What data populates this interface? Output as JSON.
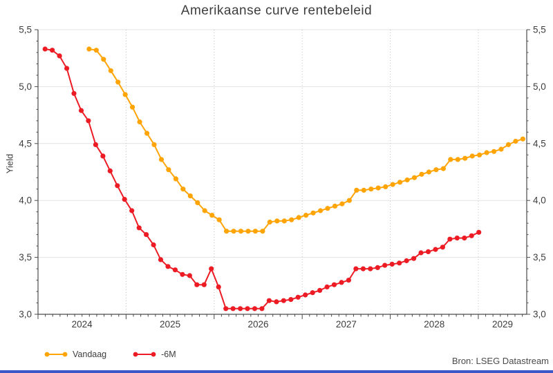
{
  "title": "Amerikaanse curve rentebeleid",
  "source": "Bron: LSEG Datastream",
  "footer_bar_color": "#3b57c8",
  "axis_color": "#4a4a4a",
  "grid_color": "#e3e3e3",
  "year_gridline_color": "#bfbfbf",
  "legend": {
    "items": [
      {
        "label": "Vandaag",
        "color": "#ffa405"
      },
      {
        "label": "-6M",
        "color": "#ed1c24"
      }
    ]
  },
  "chart_data": {
    "type": "line",
    "title": "Amerikaanse curve rentebeleid",
    "xlabel": "",
    "ylabel": "Yield",
    "ylim": [
      3.0,
      5.5
    ],
    "xlim_years": [
      2024.0,
      2029.55
    ],
    "y_ticks": [
      5.5,
      5.0,
      4.5,
      4.0,
      3.5,
      3.0
    ],
    "y_tick_labels": [
      "5,5",
      "5,0",
      "4,5",
      "4,0",
      "3,5",
      "3,0"
    ],
    "y_minor_tick_step": 0.1,
    "x_tick_labels": [
      "2024",
      "2025",
      "2026",
      "2027",
      "2028",
      "2029"
    ],
    "x_year_gridlines": [
      2025,
      2026,
      2027,
      2028,
      2029
    ],
    "grid": "horizontal solid at 0.5 steps; dotted vertical at year boundaries",
    "legend_position": "bottom-left",
    "marker": "circle",
    "series": [
      {
        "name": "Vandaag",
        "color": "#ffa405",
        "start_year": 2024.58,
        "step_years": 0.0821,
        "values": [
          5.33,
          5.32,
          5.24,
          5.14,
          5.04,
          4.93,
          4.82,
          4.69,
          4.59,
          4.49,
          4.36,
          4.27,
          4.19,
          4.1,
          4.04,
          3.98,
          3.91,
          3.87,
          3.83,
          3.73,
          3.73,
          3.73,
          3.73,
          3.73,
          3.73,
          3.81,
          3.82,
          3.82,
          3.83,
          3.85,
          3.87,
          3.89,
          3.91,
          3.93,
          3.95,
          3.97,
          4.0,
          4.09,
          4.09,
          4.1,
          4.11,
          4.12,
          4.14,
          4.16,
          4.18,
          4.2,
          4.23,
          4.25,
          4.27,
          4.28,
          4.36,
          4.36,
          4.37,
          4.39,
          4.4,
          4.42,
          4.43,
          4.45,
          4.49,
          4.52,
          4.54
        ]
      },
      {
        "name": "-6M",
        "color": "#ed1c24",
        "start_year": 2024.08,
        "step_years": 0.0821,
        "values": [
          5.33,
          5.32,
          5.27,
          5.16,
          4.94,
          4.79,
          4.7,
          4.49,
          4.39,
          4.26,
          4.13,
          4.01,
          3.91,
          3.76,
          3.7,
          3.61,
          3.48,
          3.42,
          3.39,
          3.35,
          3.34,
          3.26,
          3.26,
          3.4,
          3.24,
          3.05,
          3.05,
          3.05,
          3.05,
          3.05,
          3.05,
          3.12,
          3.11,
          3.12,
          3.13,
          3.15,
          3.17,
          3.19,
          3.21,
          3.24,
          3.26,
          3.28,
          3.3,
          3.4,
          3.4,
          3.4,
          3.41,
          3.43,
          3.44,
          3.45,
          3.47,
          3.49,
          3.54,
          3.55,
          3.57,
          3.59,
          3.66,
          3.67,
          3.67,
          3.69,
          3.72
        ]
      }
    ]
  }
}
